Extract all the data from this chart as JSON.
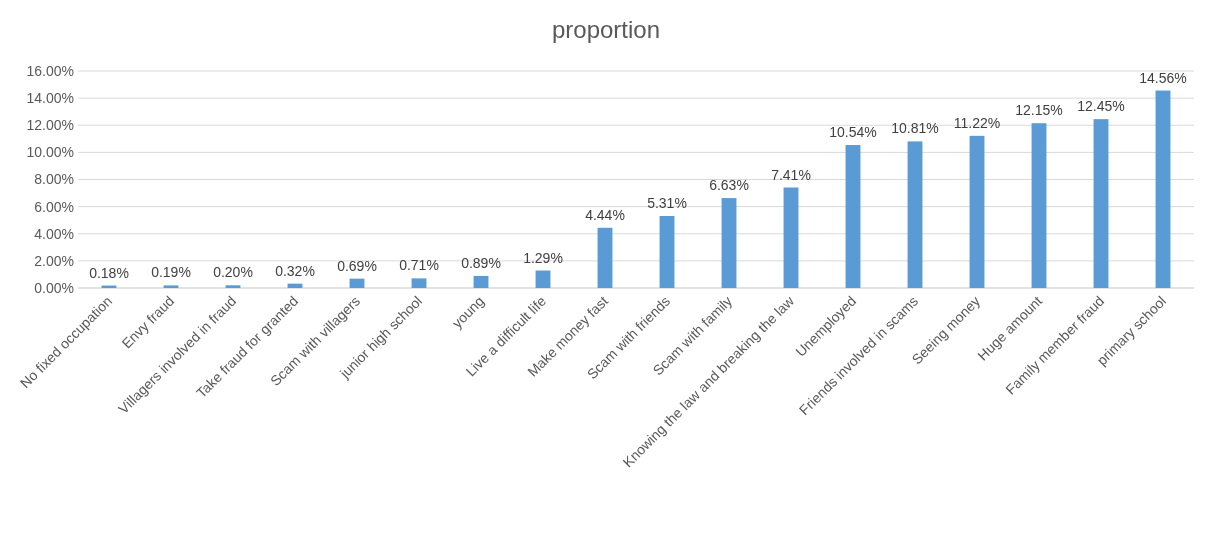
{
  "chart_data": {
    "type": "bar",
    "title": "proportion",
    "categories": [
      "No fixed occupation",
      "Envy fraud",
      "Villagers involved in fraud",
      "Take fraud for granted",
      "Scam with villagers",
      "junior high school",
      "young",
      "Live a difficult life",
      "Make money fast",
      "Scam with friends",
      "Scam with family",
      "Knowing the law and breaking the law",
      "Unemployed",
      "Friends involved in scams",
      "Seeing money",
      "Huge amount",
      "Family member fraud",
      "primary school"
    ],
    "values": [
      0.18,
      0.19,
      0.2,
      0.32,
      0.69,
      0.71,
      0.89,
      1.29,
      4.44,
      5.31,
      6.63,
      7.41,
      10.54,
      10.81,
      11.22,
      12.15,
      12.45,
      14.56
    ],
    "value_labels": [
      "0.18%",
      "0.19%",
      "0.20%",
      "0.32%",
      "0.69%",
      "0.71%",
      "0.89%",
      "1.29%",
      "4.44%",
      "5.31%",
      "6.63%",
      "7.41%",
      "10.54%",
      "10.81%",
      "11.22%",
      "12.15%",
      "12.45%",
      "14.56%"
    ],
    "color": "#5b9bd5",
    "ylim": [
      0,
      16
    ],
    "yticks": [
      {
        "value": 0,
        "label": "0.00%"
      },
      {
        "value": 2,
        "label": "2.00%"
      },
      {
        "value": 4,
        "label": "4.00%"
      },
      {
        "value": 6,
        "label": "6.00%"
      },
      {
        "value": 8,
        "label": "8.00%"
      },
      {
        "value": 10,
        "label": "10.00%"
      },
      {
        "value": 12,
        "label": "12.00%"
      },
      {
        "value": 14,
        "label": "14.00%"
      },
      {
        "value": 16,
        "label": "16.00%"
      }
    ],
    "grid": "y"
  }
}
